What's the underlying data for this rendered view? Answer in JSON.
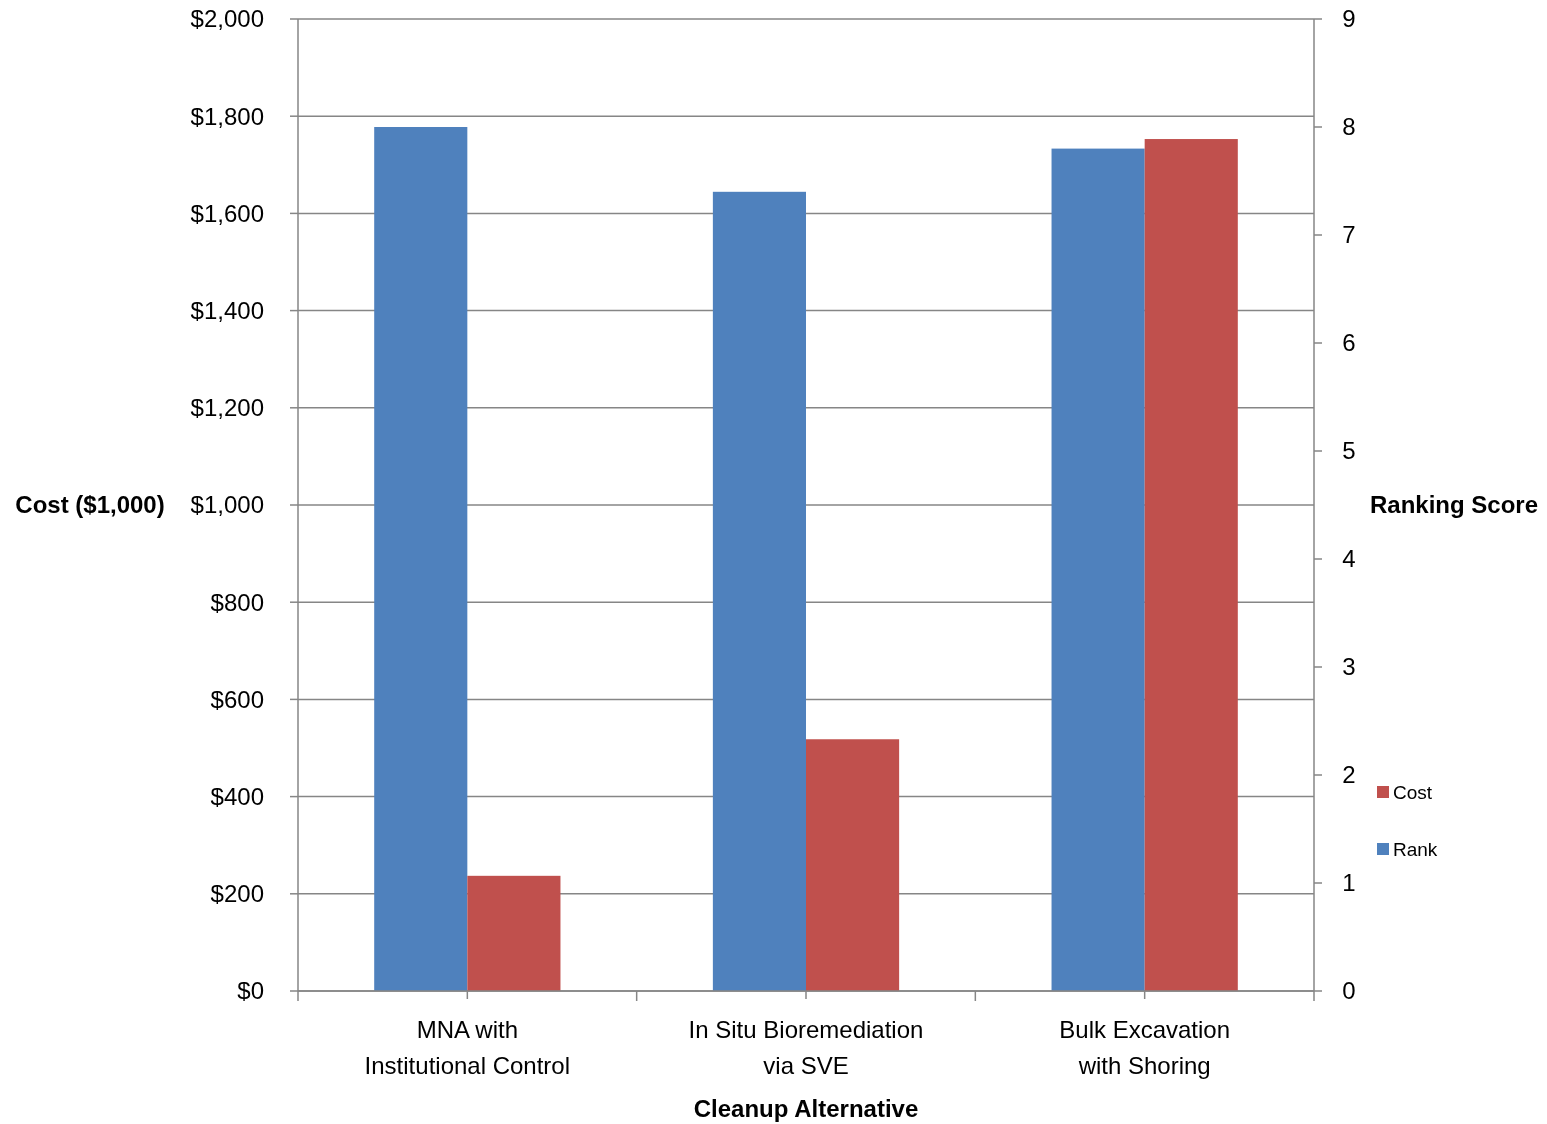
{
  "chart_data": {
    "type": "bar",
    "xlabel": "Cleanup Alternative",
    "ylabel": "Cost ($1,000)",
    "y2label": "Ranking Score",
    "categories": [
      "MNA with Institutional Control",
      "In Situ Bioremediation via SVE",
      "Bulk Excavation with Shoring"
    ],
    "series": [
      {
        "name": "Rank",
        "color": "#4f81bd",
        "values": [
          8.0,
          7.4,
          7.8
        ],
        "axis": "y2"
      },
      {
        "name": "Cost",
        "color": "#c0504d",
        "values": [
          237,
          518,
          1753
        ]
      }
    ],
    "ylim": [
      0,
      2000
    ],
    "yticks": [
      {
        "value": 0,
        "label": "$0"
      },
      {
        "value": 200,
        "label": "$200"
      },
      {
        "value": 400,
        "label": "$400"
      },
      {
        "value": 600,
        "label": "$600"
      },
      {
        "value": 800,
        "label": "$800"
      },
      {
        "value": 1000,
        "label": "$1,000"
      },
      {
        "value": 1200,
        "label": "$1,200"
      },
      {
        "value": 1400,
        "label": "$1,400"
      },
      {
        "value": 1600,
        "label": "$1,600"
      },
      {
        "value": 1800,
        "label": "$1,800"
      },
      {
        "value": 2000,
        "label": "$2,000"
      }
    ],
    "y2lim": [
      0,
      9
    ],
    "y2ticks": [
      0,
      1,
      2,
      3,
      4,
      5,
      6,
      7,
      8,
      9
    ],
    "grid": "y",
    "legend": "right"
  }
}
